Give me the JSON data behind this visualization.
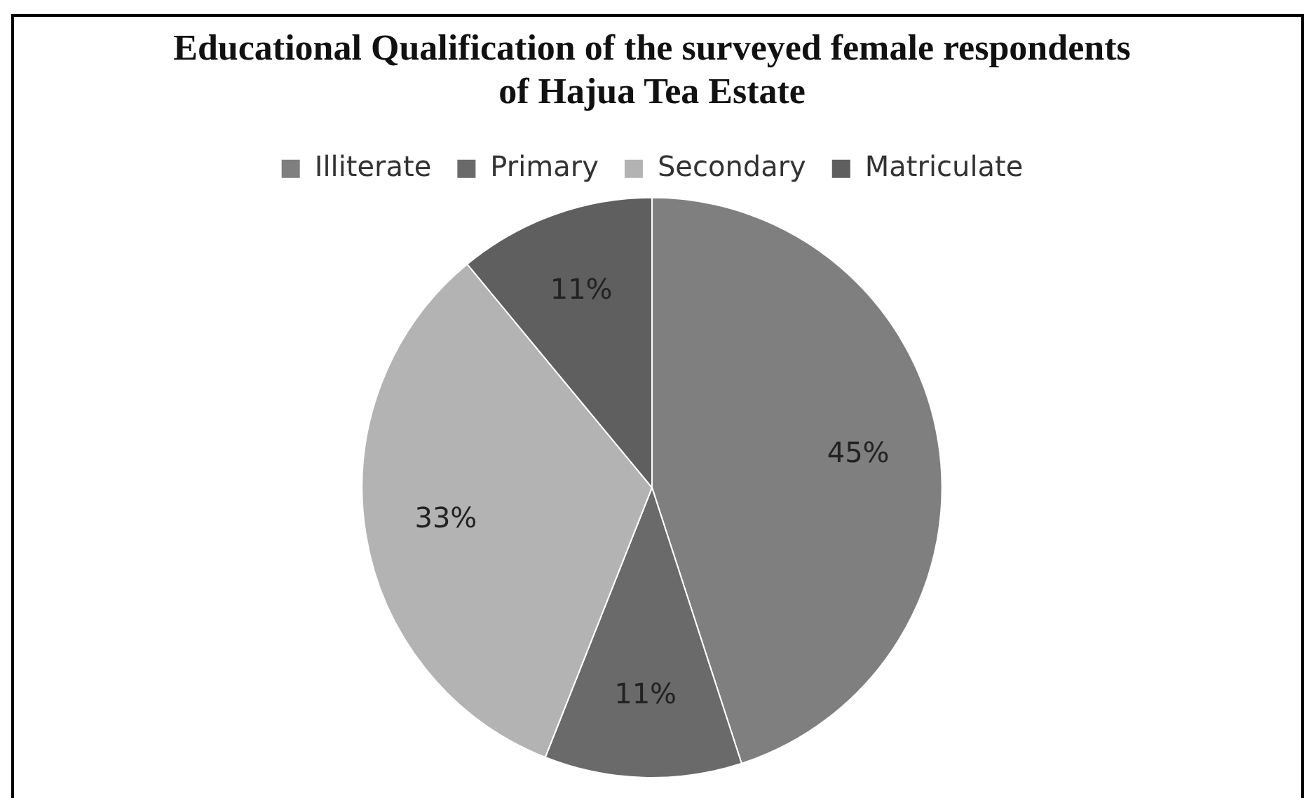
{
  "chart_data": {
    "type": "pie",
    "title": "Educational Qualification of the surveyed female respondents of Hajua Tea Estate",
    "categories": [
      "Illiterate",
      "Primary",
      "Secondary",
      "Matriculate"
    ],
    "values": [
      45,
      11,
      33,
      11
    ],
    "colors": [
      "#7f7f7f",
      "#6a6a6a",
      "#b3b3b3",
      "#5f5f5f"
    ],
    "value_labels": [
      "45%",
      "11%",
      "33%",
      "11%"
    ],
    "legend": "top"
  }
}
